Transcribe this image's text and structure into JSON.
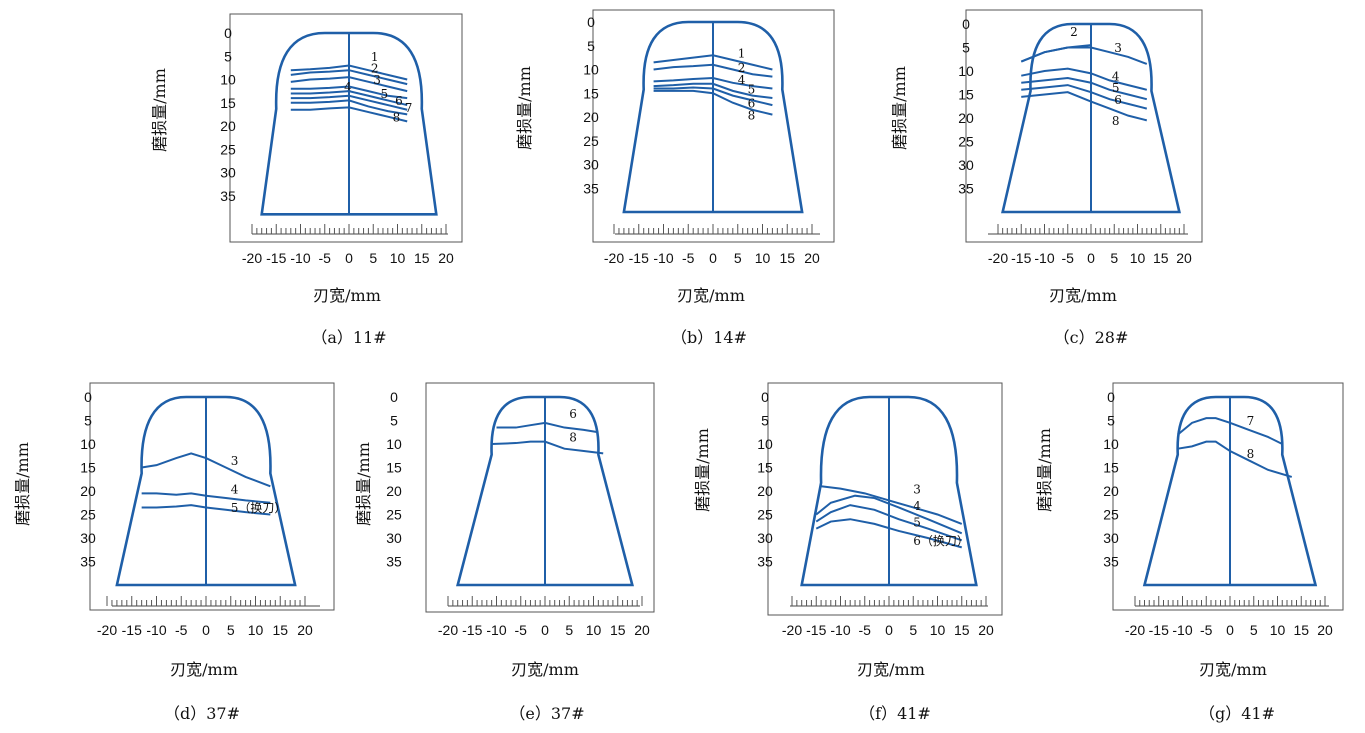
{
  "colors": {
    "curve": "#1f5fa8",
    "frame": "#555555",
    "text": "#111111"
  },
  "chart_data": [
    {
      "type": "line",
      "caption": "（a）11#",
      "xlabel": "刃宽/mm",
      "ylabel": "磨损量/mm",
      "xticks": [
        "-20",
        "-15",
        "-10",
        "-5",
        "0",
        "5",
        "10",
        "15",
        "20"
      ],
      "yticks": [
        "0",
        "5",
        "10",
        "15",
        "20",
        "25",
        "30",
        "35"
      ],
      "xlim": [
        -20,
        20
      ],
      "ylim": [
        0,
        35
      ],
      "y_inverted": true,
      "series": [
        {
          "name": "1",
          "x": [
            -12,
            -8,
            -4,
            0,
            4,
            8,
            12
          ],
          "y": [
            8,
            7.8,
            7.5,
            7,
            8,
            9,
            10
          ]
        },
        {
          "name": "2",
          "x": [
            -12,
            -8,
            -4,
            0,
            4,
            8,
            12
          ],
          "y": [
            9,
            8.5,
            8.3,
            8,
            9,
            10,
            11
          ]
        },
        {
          "name": "3",
          "x": [
            -12,
            -8,
            -4,
            0,
            4,
            8,
            12
          ],
          "y": [
            10.5,
            10,
            9.8,
            9.5,
            10.5,
            11.5,
            12.5
          ]
        },
        {
          "name": "4",
          "x": [
            -12,
            -8,
            -4,
            0,
            4,
            8,
            12
          ],
          "y": [
            12,
            12,
            11.8,
            11.5,
            12.5,
            13.5,
            14
          ]
        },
        {
          "name": "5",
          "x": [
            -12,
            -8,
            -4,
            0,
            4,
            8,
            12
          ],
          "y": [
            13,
            13,
            12.8,
            12.5,
            13.5,
            14.5,
            15.5
          ]
        },
        {
          "name": "6",
          "x": [
            -12,
            -8,
            -4,
            0,
            4,
            8,
            12
          ],
          "y": [
            14,
            14,
            13.8,
            13.5,
            14.5,
            15.5,
            16.5
          ]
        },
        {
          "name": "7",
          "x": [
            -12,
            -8,
            -4,
            0,
            4,
            8,
            12
          ],
          "y": [
            15,
            15,
            14.8,
            14.5,
            15.8,
            16.8,
            17.5
          ]
        },
        {
          "name": "8",
          "x": [
            -12,
            -8,
            -4,
            0,
            4,
            8,
            12
          ],
          "y": [
            16.5,
            16.5,
            16.2,
            16,
            17,
            18,
            19
          ]
        }
      ]
    },
    {
      "type": "line",
      "caption": "（b）14#",
      "xlabel": "刃宽/mm",
      "ylabel": "磨损量/mm",
      "xticks": [
        "-20",
        "-15",
        "-10",
        "-5",
        "0",
        "5",
        "10",
        "15",
        "20"
      ],
      "yticks": [
        "0",
        "5",
        "10",
        "15",
        "20",
        "25",
        "30",
        "35"
      ],
      "xlim": [
        -20,
        20
      ],
      "ylim": [
        0,
        35
      ],
      "y_inverted": true,
      "series": [
        {
          "name": "1",
          "x": [
            -12,
            -8,
            -4,
            0,
            4,
            8,
            12
          ],
          "y": [
            8.5,
            8,
            7.5,
            7,
            8,
            9,
            10
          ]
        },
        {
          "name": "2",
          "x": [
            -12,
            -8,
            -4,
            0,
            4,
            8,
            12
          ],
          "y": [
            10,
            9.5,
            9.3,
            9,
            10,
            11,
            11.5
          ]
        },
        {
          "name": "4",
          "x": [
            -12,
            -8,
            -4,
            0,
            4,
            8,
            12
          ],
          "y": [
            12.5,
            12.3,
            12,
            11.8,
            12.8,
            13.5,
            14
          ]
        },
        {
          "name": "5",
          "x": [
            -12,
            -8,
            -4,
            0,
            4,
            8,
            12
          ],
          "y": [
            13.5,
            13.3,
            13,
            13,
            14.5,
            15.5,
            16
          ]
        },
        {
          "name": "6",
          "x": [
            -12,
            -8,
            -4,
            0,
            4,
            8,
            12
          ],
          "y": [
            14,
            14,
            13.8,
            14,
            15.5,
            16.5,
            17.5
          ]
        },
        {
          "name": "8",
          "x": [
            -12,
            -8,
            -4,
            0,
            4,
            8,
            12
          ],
          "y": [
            14.5,
            14.5,
            14.5,
            15,
            17,
            18.5,
            19.5
          ]
        }
      ]
    },
    {
      "type": "line",
      "caption": "（c）28#",
      "xlabel": "刃宽/mm",
      "ylabel": "磨损量/mm",
      "xticks": [
        "-20",
        "-15",
        "-10",
        "-5",
        "0",
        "5",
        "10",
        "15",
        "20"
      ],
      "yticks": [
        "0",
        "5",
        "10",
        "15",
        "20",
        "25",
        "30",
        "35"
      ],
      "xlim": [
        -20,
        20
      ],
      "ylim": [
        0,
        35
      ],
      "y_inverted": true,
      "series": [
        {
          "name": "2",
          "x": [
            -15,
            -10,
            -5,
            0
          ],
          "y": [
            8,
            6,
            5,
            4.5
          ]
        },
        {
          "name": "3",
          "x": [
            -15,
            -10,
            -5,
            0,
            4,
            8,
            12
          ],
          "y": [
            8,
            6,
            5,
            5,
            6,
            7,
            8.5
          ]
        },
        {
          "name": "4",
          "x": [
            -15,
            -10,
            -5,
            0,
            4,
            8,
            12
          ],
          "y": [
            11,
            10,
            9.5,
            10.5,
            12,
            13,
            14
          ]
        },
        {
          "name": "5",
          "x": [
            -15,
            -10,
            -5,
            0,
            4,
            8,
            12
          ],
          "y": [
            12.5,
            12,
            11.5,
            12.5,
            14,
            15,
            16
          ]
        },
        {
          "name": "6",
          "x": [
            -15,
            -10,
            -5,
            0,
            4,
            8,
            12
          ],
          "y": [
            14,
            13.5,
            13,
            14.5,
            16,
            17,
            18
          ]
        },
        {
          "name": "8",
          "x": [
            -15,
            -10,
            -5,
            0,
            4,
            8,
            12
          ],
          "y": [
            15.5,
            15,
            14.5,
            16.5,
            18,
            19.5,
            20.5
          ]
        }
      ]
    },
    {
      "type": "line",
      "caption": "（d）37#",
      "xlabel": "刃宽/mm",
      "ylabel": "磨损量/mm",
      "xticks": [
        "-20",
        "-15",
        "-10",
        "-5",
        "0",
        "5",
        "10",
        "15",
        "20"
      ],
      "yticks": [
        "0",
        "5",
        "10",
        "15",
        "20",
        "25",
        "30",
        "35"
      ],
      "xlim": [
        -20,
        20
      ],
      "ylim": [
        0,
        35
      ],
      "y_inverted": true,
      "series": [
        {
          "name": "3",
          "x": [
            -13,
            -10,
            -6,
            -3,
            0,
            4,
            8,
            13
          ],
          "y": [
            15,
            14.5,
            13,
            12,
            13,
            15,
            17,
            19
          ]
        },
        {
          "name": "4",
          "x": [
            -13,
            -10,
            -6,
            -3,
            0,
            4,
            8,
            13
          ],
          "y": [
            20.5,
            20.5,
            20.8,
            20.5,
            21,
            21.5,
            22,
            22.5
          ]
        },
        {
          "name": "5（换刀）",
          "x": [
            -13,
            -10,
            -6,
            -3,
            0,
            4,
            8,
            13
          ],
          "y": [
            23.5,
            23.5,
            23.3,
            23,
            23.5,
            24,
            24.5,
            25
          ]
        }
      ]
    },
    {
      "type": "line",
      "caption": "（e）37#",
      "xlabel": "刃宽/mm",
      "ylabel": "磨损量/mm",
      "xticks": [
        "-20",
        "-15",
        "-10",
        "-5",
        "0",
        "5",
        "10",
        "15",
        "20"
      ],
      "yticks": [
        "0",
        "5",
        "10",
        "15",
        "20",
        "25",
        "30",
        "35"
      ],
      "xlim": [
        -20,
        20
      ],
      "ylim": [
        0,
        35
      ],
      "y_inverted": true,
      "series": [
        {
          "name": "6",
          "x": [
            -10,
            -6,
            -3,
            0,
            4,
            8,
            11
          ],
          "y": [
            6.5,
            6.5,
            6,
            5.5,
            6.5,
            7,
            7.5
          ]
        },
        {
          "name": "8",
          "x": [
            -11,
            -6,
            -3,
            0,
            4,
            8,
            12
          ],
          "y": [
            10,
            9.8,
            9.5,
            9.5,
            11,
            11.5,
            12
          ]
        }
      ]
    },
    {
      "type": "line",
      "caption": "（f）41#",
      "xlabel": "刃宽/mm",
      "ylabel": "磨损量/mm",
      "xticks": [
        "-20",
        "-15",
        "-10",
        "-5",
        "0",
        "5",
        "10",
        "15",
        "20"
      ],
      "yticks": [
        "0",
        "5",
        "10",
        "15",
        "20",
        "25",
        "30",
        "35"
      ],
      "xlim": [
        -20,
        20
      ],
      "ylim": [
        0,
        35
      ],
      "y_inverted": true,
      "series": [
        {
          "name": "3",
          "x": [
            -14,
            -10,
            -5,
            0,
            5,
            10,
            15
          ],
          "y": [
            19,
            19.5,
            20.5,
            22,
            23.5,
            25,
            27
          ]
        },
        {
          "name": "4",
          "x": [
            -15,
            -12,
            -7,
            -3,
            2,
            8,
            15
          ],
          "y": [
            25,
            22.5,
            21,
            21.5,
            23.5,
            26,
            29
          ]
        },
        {
          "name": "5",
          "x": [
            -15,
            -12,
            -8,
            -3,
            2,
            8,
            15
          ],
          "y": [
            26.5,
            24.5,
            23,
            24,
            26,
            28,
            30.5
          ]
        },
        {
          "name": "6（换刀）",
          "x": [
            -15,
            -12,
            -8,
            -3,
            2,
            8,
            15
          ],
          "y": [
            28,
            26.5,
            26,
            27,
            28.5,
            30,
            32
          ]
        }
      ]
    },
    {
      "type": "line",
      "caption": "（g）41#",
      "xlabel": "刃宽/mm",
      "ylabel": "磨损量/mm",
      "xticks": [
        "-20",
        "-15",
        "-10",
        "-5",
        "0",
        "5",
        "10",
        "15",
        "20"
      ],
      "yticks": [
        "0",
        "5",
        "10",
        "15",
        "20",
        "25",
        "30",
        "35"
      ],
      "xlim": [
        -20,
        20
      ],
      "ylim": [
        0,
        35
      ],
      "y_inverted": true,
      "series": [
        {
          "name": "7",
          "x": [
            -11,
            -8,
            -5,
            -3,
            0,
            4,
            8,
            11
          ],
          "y": [
            8,
            5.5,
            4.5,
            4.5,
            5.5,
            7,
            8.5,
            10
          ]
        },
        {
          "name": "8",
          "x": [
            -11,
            -8,
            -5,
            -3,
            0,
            4,
            8,
            13
          ],
          "y": [
            11,
            10.5,
            9.5,
            9.5,
            11.5,
            13.5,
            15.5,
            17
          ]
        }
      ]
    }
  ]
}
